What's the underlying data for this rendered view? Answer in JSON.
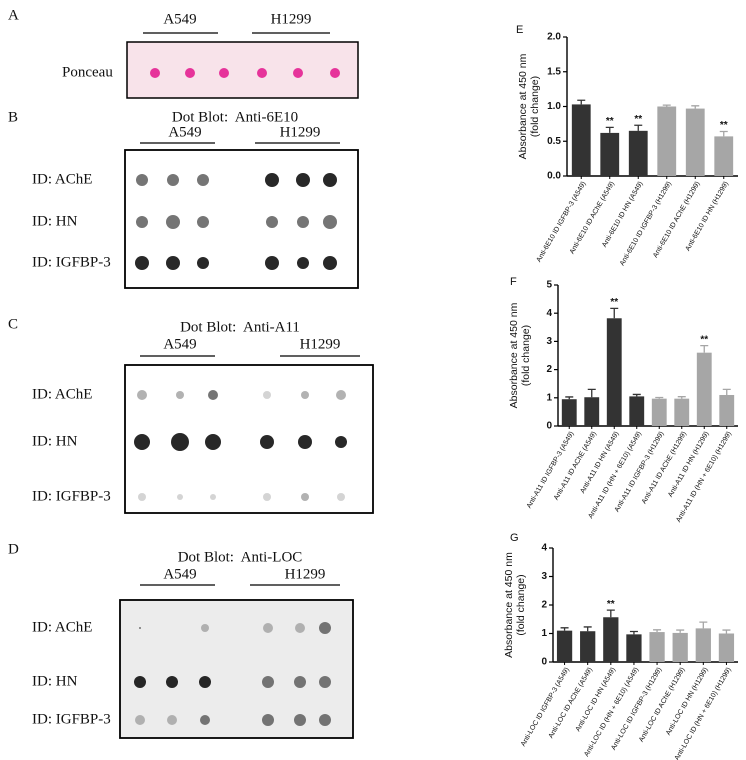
{
  "panel_a": {
    "letter": "A",
    "groups": [
      "A549",
      "H1299"
    ],
    "row_label": "Ponceau"
  },
  "blots": [
    {
      "letter": "B",
      "title": "Dot Blot:  Anti-6E10",
      "groups": [
        "A549",
        "H1299"
      ],
      "rows": [
        "ID: AChE",
        "ID: HN",
        "ID: IGFBP-3"
      ]
    },
    {
      "letter": "C",
      "title": "Dot Blot:  Anti-A11",
      "groups": [
        "A549",
        "H1299"
      ],
      "rows": [
        "ID: AChE",
        "ID: HN",
        "ID: IGFBP-3"
      ]
    },
    {
      "letter": "D",
      "title": "Dot Blot:  Anti-LOC",
      "groups": [
        "A549",
        "H1299"
      ],
      "rows": [
        "ID: AChE",
        "ID: HN",
        "ID: IGFBP-3"
      ]
    }
  ],
  "chart_data": [
    {
      "type": "bar",
      "panel": "E",
      "ylabel": [
        "Absorbance at 450 nm",
        "(fold change)"
      ],
      "categories": [
        "Anti-6E10 ID IGFBP-3 (A549)",
        "Anti-6E10 ID AChE (A549)",
        "Anti-6E10 ID HN (A549)",
        "Anti-6E10 ID IGFBP-3 (H1299)",
        "Anti-6E10 ID AChE (H1299)",
        "Anti-6E10 ID HN (H1299)"
      ],
      "values": [
        1.03,
        0.62,
        0.65,
        1.0,
        0.97,
        0.57
      ],
      "errors": [
        0.06,
        0.08,
        0.08,
        0.02,
        0.04,
        0.07
      ],
      "colors": [
        "#333333",
        "#333333",
        "#333333",
        "#a6a6a6",
        "#a6a6a6",
        "#a6a6a6"
      ],
      "significance": [
        null,
        "**",
        "**",
        null,
        null,
        "**"
      ],
      "ylim": [
        0,
        2
      ],
      "yticks": [
        {
          "value": 0,
          "label": "0.0"
        },
        0.5,
        {
          "value": 1,
          "label": "1.0"
        },
        1.5,
        {
          "value": 2,
          "label": "2.0"
        }
      ]
    },
    {
      "type": "bar",
      "panel": "F",
      "ylabel": [
        "Absorbance at 450 nm",
        "(fold change)"
      ],
      "categories": [
        "Anti-A11 ID IGFBP-3 (A549)",
        "Anti-A11 ID AChE (A549)",
        "Anti-A11 ID HN (A549)",
        "Anti-A11 ID (HN + 6E10) (A549)",
        "Anti-A11 ID IGFBP-3 (H1299)",
        "Anti-A11 ID AChE (H1299)",
        "Anti-A11 ID HN (H1299)",
        "Anti-A11 ID (HN + 6E10) (H1299)"
      ],
      "values": [
        0.95,
        1.02,
        3.82,
        1.05,
        0.97,
        0.97,
        2.6,
        1.1
      ],
      "errors": [
        0.08,
        0.28,
        0.35,
        0.07,
        0.04,
        0.07,
        0.25,
        0.2
      ],
      "colors": [
        "#333333",
        "#333333",
        "#333333",
        "#333333",
        "#a6a6a6",
        "#a6a6a6",
        "#a6a6a6",
        "#a6a6a6"
      ],
      "significance": [
        null,
        null,
        "**",
        null,
        null,
        null,
        "**",
        null
      ],
      "ylim": [
        0,
        5
      ],
      "yticks": [
        0,
        1,
        2,
        3,
        4,
        5
      ]
    },
    {
      "type": "bar",
      "panel": "G",
      "ylabel": [
        "Absorbance at 450 nm",
        "(fold change)"
      ],
      "categories": [
        "Anti-LOC ID IGFBP-3 (A549)",
        "Anti-LOC ID AChE (A549)",
        "Anti-LOC ID HN (A549)",
        "Anti-LOC ID (HN + 6E10) (A549)",
        "Anti-LOC ID IGFBP-3 (H1299)",
        "Anti-LOC ID AChE (H1299)",
        "Anti-LOC ID HN (H1299)",
        "Anti-LOC ID (HN + 6E10) (H1299)"
      ],
      "values": [
        1.1,
        1.08,
        1.57,
        0.97,
        1.05,
        1.02,
        1.18,
        1.0
      ],
      "errors": [
        0.1,
        0.15,
        0.25,
        0.1,
        0.08,
        0.1,
        0.22,
        0.12
      ],
      "colors": [
        "#333333",
        "#333333",
        "#333333",
        "#333333",
        "#a6a6a6",
        "#a6a6a6",
        "#a6a6a6",
        "#a6a6a6"
      ],
      "significance": [
        null,
        null,
        "**",
        null,
        null,
        null,
        null,
        null
      ],
      "ylim": [
        0,
        4
      ],
      "yticks": [
        0,
        1,
        2,
        3,
        4
      ]
    }
  ]
}
